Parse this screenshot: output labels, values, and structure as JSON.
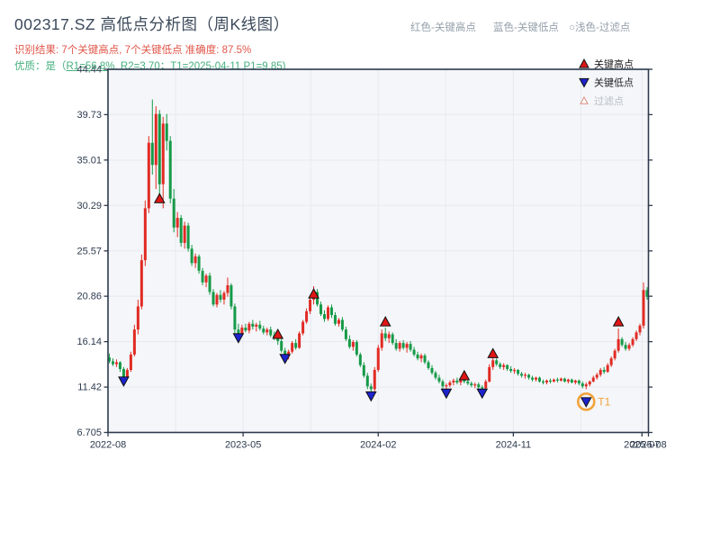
{
  "header": {
    "title": "002317.SZ 高低点分析图（周K线图）",
    "result_line": "识别结果: 7个关键高点, 7个关键低点  准确度: 87.5%",
    "quality_prefix": "优质：是（",
    "quality_detail": "R1=56.8%, R2=3.70；T1=2025-04-11 P1=9.85)",
    "top_legend": [
      {
        "label": "红色-关键高点"
      },
      {
        "label": "蓝色-关键低点"
      },
      {
        "label": "○浅色-过滤点"
      }
    ]
  },
  "colors": {
    "up": "#e12b24",
    "down": "#169a48",
    "marker_high": "#e01616",
    "marker_low": "#1d23cc",
    "marker_edge": "#101010",
    "ring": "#f2a33c",
    "t1_text": "#f2a33c",
    "grid": "#e6eaf0",
    "plot_bg": "#f4f6f9",
    "axis": "#2c3a4d",
    "legend_text": "#1d1d1d",
    "muted_text": "#b9c0c8",
    "filter_edge": "#d98c7e"
  },
  "chart_data": {
    "type": "candlestick",
    "symbol": "002317.SZ",
    "interval": "weekly",
    "title": "002317.SZ 高低点分析图（周K线图）",
    "ylim": [
      6.705,
      44.44
    ],
    "grid": true,
    "legend_position": "upper right",
    "y_ticks": [
      "44.44",
      "39.73",
      "35.01",
      "30.29",
      "25.57",
      "20.86",
      "16.14",
      "11.42",
      "6.705"
    ],
    "y_tick_values": [
      44.44,
      39.73,
      35.01,
      30.29,
      25.57,
      20.86,
      16.14,
      11.42,
      6.705
    ],
    "x_ticks": [
      {
        "label": "2022-08",
        "f": 0
      },
      {
        "label": "2023-05",
        "f": 0.25
      },
      {
        "label": "2024-02",
        "f": 0.5
      },
      {
        "label": "2024-11",
        "f": 0.75
      },
      {
        "label": "2025-07",
        "f": 0.988
      },
      {
        "label": "2025-08",
        "f": 1.0
      }
    ],
    "minor_x_grid_f": [
      0.125,
      0.375,
      0.625,
      0.875
    ],
    "legend": [
      {
        "label": "关键高点",
        "marker": "up",
        "muted": false
      },
      {
        "label": "关键低点",
        "marker": "down",
        "muted": false
      },
      {
        "label": "过滤点",
        "marker": "up-outline",
        "muted": true
      }
    ],
    "candles": [
      [
        14.5,
        14.9,
        13.9,
        14.1
      ],
      [
        14.1,
        14.4,
        13.6,
        13.8
      ],
      [
        13.8,
        14.3,
        13.5,
        14.0
      ],
      [
        14.0,
        14.1,
        13.0,
        13.3
      ],
      [
        13.3,
        13.5,
        12.1,
        12.5
      ],
      [
        12.5,
        13.4,
        12.3,
        13.2
      ],
      [
        13.2,
        15.1,
        13.0,
        14.8
      ],
      [
        14.8,
        17.9,
        14.6,
        17.4
      ],
      [
        17.4,
        20.5,
        16.9,
        19.8
      ],
      [
        19.8,
        25.2,
        19.5,
        24.6
      ],
      [
        24.6,
        30.8,
        24.0,
        30.0
      ],
      [
        30.0,
        37.5,
        29.5,
        36.8
      ],
      [
        36.8,
        41.3,
        33.5,
        34.5
      ],
      [
        34.5,
        40.6,
        32.0,
        39.8
      ],
      [
        39.8,
        40.2,
        31.2,
        32.5
      ],
      [
        32.5,
        39.5,
        30.0,
        38.8
      ],
      [
        38.8,
        39.8,
        36.0,
        37.0
      ],
      [
        37.0,
        37.5,
        30.5,
        31.0
      ],
      [
        31.0,
        32.0,
        27.5,
        28.0
      ],
      [
        28.0,
        29.6,
        27.0,
        29.0
      ],
      [
        29.0,
        29.3,
        26.0,
        26.4
      ],
      [
        26.4,
        28.6,
        25.8,
        28.2
      ],
      [
        28.2,
        28.5,
        25.5,
        25.8
      ],
      [
        25.8,
        26.2,
        24.0,
        24.3
      ],
      [
        24.3,
        25.3,
        23.8,
        25.0
      ],
      [
        25.0,
        25.2,
        23.2,
        23.5
      ],
      [
        23.5,
        23.8,
        22.0,
        22.3
      ],
      [
        22.3,
        23.2,
        21.8,
        23.0
      ],
      [
        23.0,
        23.3,
        21.0,
        21.3
      ],
      [
        21.3,
        21.6,
        19.8,
        20.0
      ],
      [
        20.0,
        21.2,
        19.7,
        21.0
      ],
      [
        21.0,
        21.5,
        20.2,
        20.5
      ],
      [
        20.5,
        21.4,
        20.0,
        21.2
      ],
      [
        21.2,
        22.8,
        20.8,
        22.0
      ],
      [
        22.0,
        22.2,
        19.5,
        19.8
      ],
      [
        19.8,
        20.1,
        17.0,
        17.4
      ],
      [
        17.4,
        18.0,
        16.7,
        17.0
      ],
      [
        17.0,
        17.9,
        16.8,
        17.6
      ],
      [
        17.6,
        18.0,
        17.1,
        17.3
      ],
      [
        17.3,
        18.2,
        17.0,
        18.0
      ],
      [
        18.0,
        18.4,
        17.4,
        17.7
      ],
      [
        17.7,
        18.1,
        17.2,
        17.9
      ],
      [
        17.9,
        18.3,
        17.3,
        17.5
      ],
      [
        17.5,
        17.8,
        16.9,
        17.1
      ],
      [
        17.1,
        17.6,
        16.8,
        17.4
      ],
      [
        17.4,
        17.7,
        16.6,
        16.8
      ],
      [
        16.8,
        17.2,
        16.3,
        16.5
      ],
      [
        16.5,
        16.9,
        15.8,
        16.2
      ],
      [
        16.2,
        16.5,
        15.0,
        15.2
      ],
      [
        15.2,
        15.5,
        14.4,
        14.6
      ],
      [
        14.6,
        15.3,
        14.3,
        15.1
      ],
      [
        15.1,
        16.2,
        14.9,
        16.0
      ],
      [
        16.0,
        16.4,
        15.3,
        15.5
      ],
      [
        15.5,
        17.2,
        15.4,
        17.0
      ],
      [
        17.0,
        18.4,
        16.8,
        18.2
      ],
      [
        18.2,
        19.6,
        18.0,
        19.3
      ],
      [
        19.3,
        20.8,
        19.0,
        20.5
      ],
      [
        20.5,
        21.9,
        20.0,
        21.3
      ],
      [
        21.3,
        21.6,
        19.8,
        20.0
      ],
      [
        20.0,
        20.3,
        18.8,
        19.0
      ],
      [
        19.0,
        19.4,
        18.2,
        18.5
      ],
      [
        18.5,
        19.9,
        18.3,
        19.7
      ],
      [
        19.7,
        20.0,
        18.6,
        18.9
      ],
      [
        18.9,
        19.2,
        17.8,
        18.0
      ],
      [
        18.0,
        18.6,
        17.7,
        18.4
      ],
      [
        18.4,
        18.7,
        17.2,
        17.4
      ],
      [
        17.4,
        17.7,
        16.2,
        16.4
      ],
      [
        16.4,
        16.8,
        15.4,
        15.6
      ],
      [
        15.6,
        16.3,
        15.2,
        16.1
      ],
      [
        16.1,
        16.3,
        14.6,
        14.8
      ],
      [
        14.8,
        15.0,
        13.5,
        13.7
      ],
      [
        13.7,
        14.0,
        12.4,
        12.6
      ],
      [
        12.6,
        12.9,
        11.2,
        11.5
      ],
      [
        11.5,
        11.8,
        10.6,
        11.2
      ],
      [
        11.2,
        13.5,
        11.0,
        13.2
      ],
      [
        13.2,
        15.8,
        13.0,
        15.5
      ],
      [
        15.5,
        17.4,
        15.2,
        17.0
      ],
      [
        17.0,
        17.6,
        16.2,
        16.5
      ],
      [
        16.5,
        17.2,
        16.0,
        16.9
      ],
      [
        16.9,
        17.1,
        15.8,
        16.0
      ],
      [
        16.0,
        16.4,
        15.2,
        15.4
      ],
      [
        15.4,
        16.2,
        15.1,
        16.0
      ],
      [
        16.0,
        16.3,
        15.3,
        15.5
      ],
      [
        15.5,
        16.1,
        15.0,
        15.9
      ],
      [
        15.9,
        16.2,
        15.1,
        15.3
      ],
      [
        15.3,
        15.6,
        14.6,
        14.8
      ],
      [
        14.8,
        15.1,
        14.2,
        14.4
      ],
      [
        14.4,
        14.9,
        14.0,
        14.7
      ],
      [
        14.7,
        14.9,
        13.8,
        14.0
      ],
      [
        14.0,
        14.2,
        13.2,
        13.4
      ],
      [
        13.4,
        13.7,
        12.7,
        12.9
      ],
      [
        12.9,
        13.1,
        12.2,
        12.4
      ],
      [
        12.4,
        12.7,
        11.8,
        12.0
      ],
      [
        12.0,
        12.2,
        11.3,
        11.5
      ],
      [
        11.5,
        11.8,
        11.1,
        11.6
      ],
      [
        11.6,
        12.1,
        11.4,
        11.9
      ],
      [
        11.9,
        12.3,
        11.6,
        12.1
      ],
      [
        12.1,
        12.4,
        11.7,
        11.9
      ],
      [
        11.9,
        12.3,
        11.6,
        12.2
      ],
      [
        12.2,
        12.4,
        11.8,
        12.0
      ],
      [
        12.0,
        12.2,
        11.6,
        11.8
      ],
      [
        11.8,
        12.0,
        11.4,
        11.6
      ],
      [
        11.6,
        11.9,
        11.3,
        11.7
      ],
      [
        11.7,
        11.9,
        11.2,
        11.4
      ],
      [
        11.4,
        11.6,
        11.1,
        11.3
      ],
      [
        11.3,
        12.2,
        11.2,
        12.0
      ],
      [
        12.0,
        13.8,
        11.9,
        13.5
      ],
      [
        13.5,
        14.5,
        13.2,
        14.2
      ],
      [
        14.2,
        14.4,
        13.6,
        13.8
      ],
      [
        13.8,
        14.0,
        13.3,
        13.5
      ],
      [
        13.5,
        13.9,
        13.2,
        13.7
      ],
      [
        13.7,
        13.8,
        13.1,
        13.3
      ],
      [
        13.3,
        13.6,
        12.9,
        13.1
      ],
      [
        13.1,
        13.4,
        12.8,
        13.2
      ],
      [
        13.2,
        13.3,
        12.6,
        12.8
      ],
      [
        12.8,
        13.0,
        12.4,
        12.6
      ],
      [
        12.6,
        12.9,
        12.3,
        12.7
      ],
      [
        12.7,
        12.8,
        12.2,
        12.4
      ],
      [
        12.4,
        12.6,
        12.0,
        12.2
      ],
      [
        12.2,
        12.5,
        12.0,
        12.4
      ],
      [
        12.4,
        12.5,
        11.9,
        12.0
      ],
      [
        12.0,
        12.2,
        11.7,
        11.9
      ],
      [
        11.9,
        12.2,
        11.7,
        12.1
      ],
      [
        12.1,
        12.3,
        11.8,
        12.0
      ],
      [
        12.0,
        12.3,
        11.9,
        12.2
      ],
      [
        12.2,
        12.4,
        11.9,
        12.1
      ],
      [
        12.1,
        12.4,
        12.0,
        12.3
      ],
      [
        12.3,
        12.4,
        11.9,
        12.0
      ],
      [
        12.0,
        12.3,
        11.8,
        12.2
      ],
      [
        12.2,
        12.3,
        11.8,
        11.9
      ],
      [
        11.9,
        12.2,
        11.7,
        12.1
      ],
      [
        12.1,
        12.2,
        11.6,
        11.8
      ],
      [
        11.8,
        12.0,
        11.3,
        11.5
      ],
      [
        11.5,
        11.9,
        11.2,
        11.7
      ],
      [
        11.7,
        12.1,
        11.5,
        12.0
      ],
      [
        12.0,
        12.6,
        11.9,
        12.4
      ],
      [
        12.4,
        12.9,
        12.2,
        12.7
      ],
      [
        12.7,
        13.4,
        12.5,
        13.2
      ],
      [
        13.2,
        13.5,
        12.8,
        13.0
      ],
      [
        13.0,
        13.9,
        12.9,
        13.7
      ],
      [
        13.7,
        14.6,
        13.5,
        14.4
      ],
      [
        14.4,
        15.4,
        14.2,
        15.2
      ],
      [
        15.2,
        17.5,
        15.0,
        16.4
      ],
      [
        16.4,
        16.6,
        15.6,
        15.8
      ],
      [
        15.8,
        16.1,
        15.2,
        15.4
      ],
      [
        15.4,
        16.0,
        15.2,
        15.8
      ],
      [
        15.8,
        16.6,
        15.6,
        16.4
      ],
      [
        16.4,
        17.3,
        16.2,
        17.1
      ],
      [
        17.1,
        18.0,
        16.8,
        17.8
      ],
      [
        17.8,
        22.3,
        17.5,
        21.5
      ],
      [
        21.5,
        21.8,
        20.5,
        20.8
      ]
    ],
    "key_highs": [
      {
        "week": 14,
        "price": 31.0
      },
      {
        "week": 47,
        "price": 16.9
      },
      {
        "week": 57,
        "price": 21.1
      },
      {
        "week": 77,
        "price": 18.2
      },
      {
        "week": 99,
        "price": 12.6
      },
      {
        "week": 107,
        "price": 14.9
      },
      {
        "week": 142,
        "price": 18.2
      }
    ],
    "key_lows": [
      {
        "week": 4,
        "price": 12.05
      },
      {
        "week": 36,
        "price": 16.55
      },
      {
        "week": 49,
        "price": 14.4
      },
      {
        "week": 73,
        "price": 10.5
      },
      {
        "week": 94,
        "price": 10.8
      },
      {
        "week": 104,
        "price": 10.8
      },
      {
        "week": 133,
        "price": 9.9
      }
    ],
    "t1_marker": {
      "week": 133,
      "price": 9.9,
      "label": "T1"
    }
  }
}
